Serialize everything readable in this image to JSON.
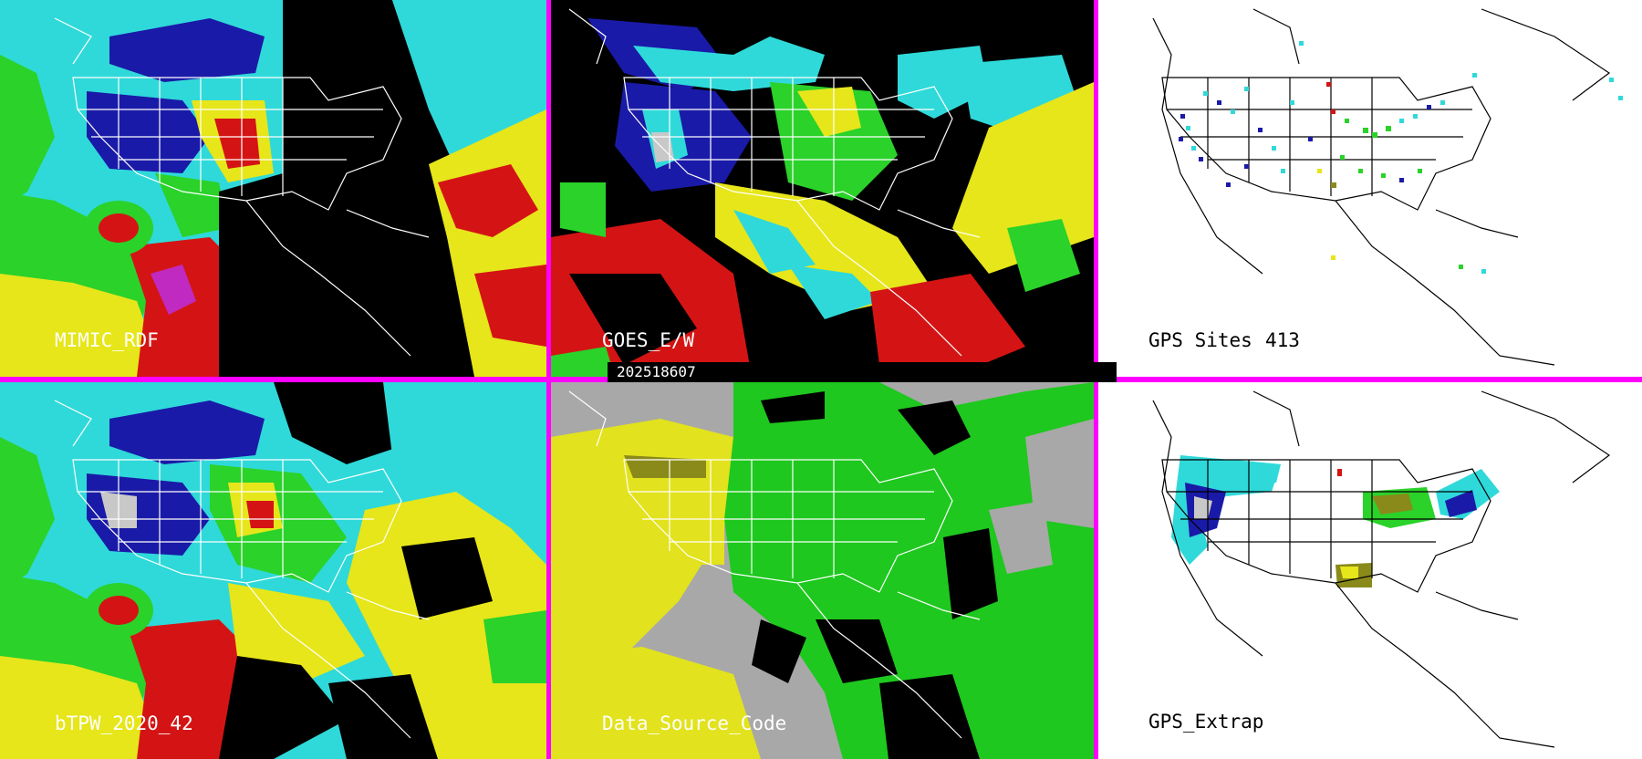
{
  "panels": {
    "mimic": {
      "label": "MIMIC_RDF",
      "theme": "dark"
    },
    "goes": {
      "label": "GOES_E/W",
      "theme": "dark"
    },
    "gps_sites": {
      "label": "GPS Sites",
      "count": "413",
      "theme": "light"
    },
    "btpw": {
      "label": "bTPW_2020_42",
      "theme": "dark"
    },
    "data_source": {
      "label": "Data_Source_Code",
      "theme": "gray"
    },
    "gps_extrap": {
      "label": "GPS_Extrap",
      "theme": "light"
    }
  },
  "timestamp": "202518607",
  "colors": {
    "separator": "#ff00ff",
    "background_dark": "#000000",
    "background_light": "#ffffff",
    "map_outline_on_dark": "#ffffff",
    "map_outline_on_light": "#000000",
    "cyan": "#2fd9d9",
    "blue": "#1a1aa8",
    "green": "#2ad22a",
    "yellow": "#e6e61a",
    "red": "#d41414",
    "magenta": "#c02ac0",
    "gray": "#a8a8a8",
    "olive": "#8a8a1a",
    "source_yellow": "#e2e21e",
    "source_green": "#1ec81e"
  }
}
